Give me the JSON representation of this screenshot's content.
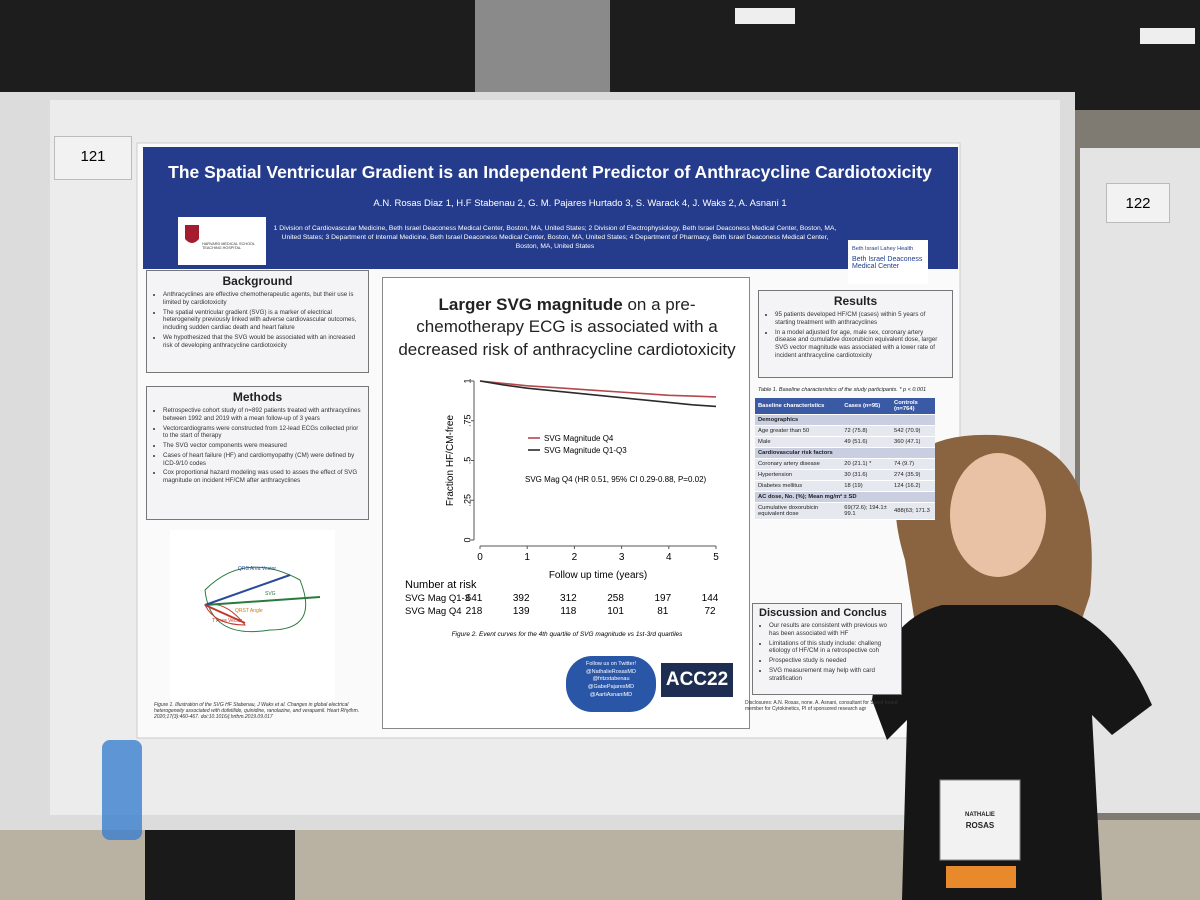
{
  "booth_numbers": [
    "121",
    "122"
  ],
  "header": {
    "title": "The Spatial Ventricular Gradient is an Independent Predictor of Anthracycline Cardiotoxicity",
    "authors": "A.N. Rosas Diaz 1,  H.F Stabenau 2, G. M. Pajares Hurtado 3, S. Warack 4, J. Waks 2, A. Asnani 1",
    "affiliations": "1 Division of Cardiovascular Medicine, Beth Israel Deaconess Medical Center, Boston, MA, United States; 2 Division of Electrophysiology, Beth Israel Deaconess Medical Center, Boston, MA, United States; 3 Department of Internal Medicine, Beth Israel Deaconess Medical Center, Boston, MA, United States; 4 Department of Pharmacy, Beth Israel Deaconess Medical Center, Boston, MA, United States",
    "left_logo": "HARVARD MEDICAL SCHOOL TEACHING HOSPITAL",
    "right_logo_top": "Beth Israel Lahey Health",
    "right_logo_bottom": "Beth Israel Deaconess Medical Center"
  },
  "background": {
    "heading": "Background",
    "bullets": [
      "Anthracyclines are effective chemotherapeutic agents, but their use is limited by cardiotoxicity",
      "The spatial ventricular gradient (SVG) is a marker of electrical heterogeneity previously linked with adverse cardiovascular outcomes, including sudden cardiac death and heart failure",
      "We hypothesized that the SVG would be associated with an increased risk of developing anthracycline cardiotoxicity"
    ]
  },
  "methods": {
    "heading": "Methods",
    "bullets": [
      "Retrospective cohort study of n=892 patients treated with anthracyclines between 1992 and 2019 with a mean follow-up of 3 years",
      "Vectorcardiograms were constructed from 12-lead ECGs collected prior to the start of therapy",
      "The SVG vector components were measured",
      "Cases of heart failure (HF) and cardiomyopathy (CM) were defined by ICD-9/10 codes",
      "Cox proportional hazard modeling was used to asses the effect of SVG magnitude on incident HF/CM after anthracyclines"
    ]
  },
  "figure1": {
    "labels": [
      "QRS Area Vector",
      "SVG",
      "QRST Angle",
      "T Area Vector"
    ],
    "caption": "Figure 1. Illustration of the SVG HF Stabenau, J Waks et al. Changes in global electrical heterogeneity associated with dofetilide, quinidine, ranolazine, and verapamil. Heart Rhythm. 2020;17(3):460-467. doi:10.1016/j.hrthm.2019.09.017"
  },
  "km": {
    "title_bold": "Larger SVG magnitude",
    "title_rest": "on a pre-chemotherapy ECG is associated with a decreased risk of anthracycline cardiotoxicity",
    "ylabel": "Fraction HF/CM-free",
    "xlabel": "Follow up time (years)",
    "xlim": [
      0,
      5
    ],
    "ylim": [
      0,
      1
    ],
    "xticks": [
      0,
      1,
      2,
      3,
      4,
      5
    ],
    "yticks": [
      0,
      {
        "value": 0.25,
        "label": ".25"
      },
      {
        "value": 0.5,
        "label": ".5"
      },
      {
        "value": 0.75,
        "label": ".75"
      },
      1
    ],
    "x": [
      0,
      0.5,
      1,
      1.5,
      2,
      2.5,
      3,
      3.5,
      4,
      4.5,
      5
    ],
    "series": [
      {
        "name": "SVG Magnitude Q4",
        "color": "#b5484f",
        "values": [
          1,
          0.985,
          0.97,
          0.96,
          0.95,
          0.94,
          0.93,
          0.92,
          0.91,
          0.905,
          0.9
        ]
      },
      {
        "name": "SVG Magnitude Q1-Q3",
        "color": "#2b2b2b",
        "values": [
          1,
          0.975,
          0.955,
          0.94,
          0.925,
          0.91,
          0.895,
          0.88,
          0.865,
          0.85,
          0.84
        ]
      }
    ],
    "annotation": "SVG Mag Q4 (HR 0.51, 95% CI 0.29-0.88, P=0.02)",
    "risk_heading": "Number at risk",
    "risk_rows": [
      {
        "label": "SVG Mag Q1-3",
        "values": [
          641,
          392,
          312,
          258,
          197,
          144
        ]
      },
      {
        "label": "SVG Mag Q4",
        "values": [
          218,
          139,
          118,
          101,
          81,
          72
        ]
      }
    ],
    "caption": "Figure 2. Event curves for the 4th quartile of SVG magnitude vs 1st-3rd quartiles"
  },
  "social": {
    "lines": [
      "Follow us on Twitter!",
      "@NathalieRosasMD",
      "@fritzstabenau",
      "@GabePajaresMD",
      "@AartiAsnaniMD"
    ],
    "logo": "ACC22"
  },
  "results": {
    "heading": "Results",
    "bullets": [
      "95 patients developed HF/CM (cases) within 5 years of starting treatment with anthracyclines",
      "In a model adjusted for age, male sex, coronary artery disease and cumulative doxorubicin equivalent dose, larger SVG vector magnitude was associated with a lower rate of incident anthracycline cardiotoxicity"
    ]
  },
  "table1": {
    "caption": "Table 1. Baseline characteristics of the study participants. * p < 0.001",
    "header": [
      "Baseline characteristics",
      "Cases (n=95)",
      "Controls (n=764)"
    ],
    "rows": [
      [
        "Demographics"
      ],
      [
        "Age greater than 50",
        "72 (75.8)",
        "542 (70.9)"
      ],
      [
        "Male",
        "49 (51.6)",
        "360 (47.1)"
      ],
      [
        "Cardiovascular risk factors"
      ],
      [
        "Coronary artery disease",
        "20 (21.1) *",
        "74 (9.7)"
      ],
      [
        "Hypertension",
        "30 (31.6)",
        "274 (35.9)"
      ],
      [
        "Diabetes mellitus",
        "18 (19)",
        "124 (16.2)"
      ],
      [
        "AC dose, No. (%); Mean mg/m² ± SD"
      ],
      [
        "Cumulative doxorubicin equivalent dose",
        "69(72.6); 194.1± 99.1",
        "488(63; 171.3"
      ]
    ]
  },
  "discussion": {
    "heading": "Discussion and Conclus",
    "bullets": [
      "Our results are consistent with previous wo has been associated with HF",
      "Limitations of this study include: challeng etiology of HF/CM in a retrospective coh",
      "Prospective study is needed",
      "SVG measurement may help with card stratification"
    ]
  },
  "disclosures": "Disclosures: A.N. Rosas, none. A. Asnani, consultant for Sanof board member for Cytokinetics, PI of sponsored research agr",
  "badge": {
    "first": "NATHALIE",
    "last": "ROSAS"
  }
}
